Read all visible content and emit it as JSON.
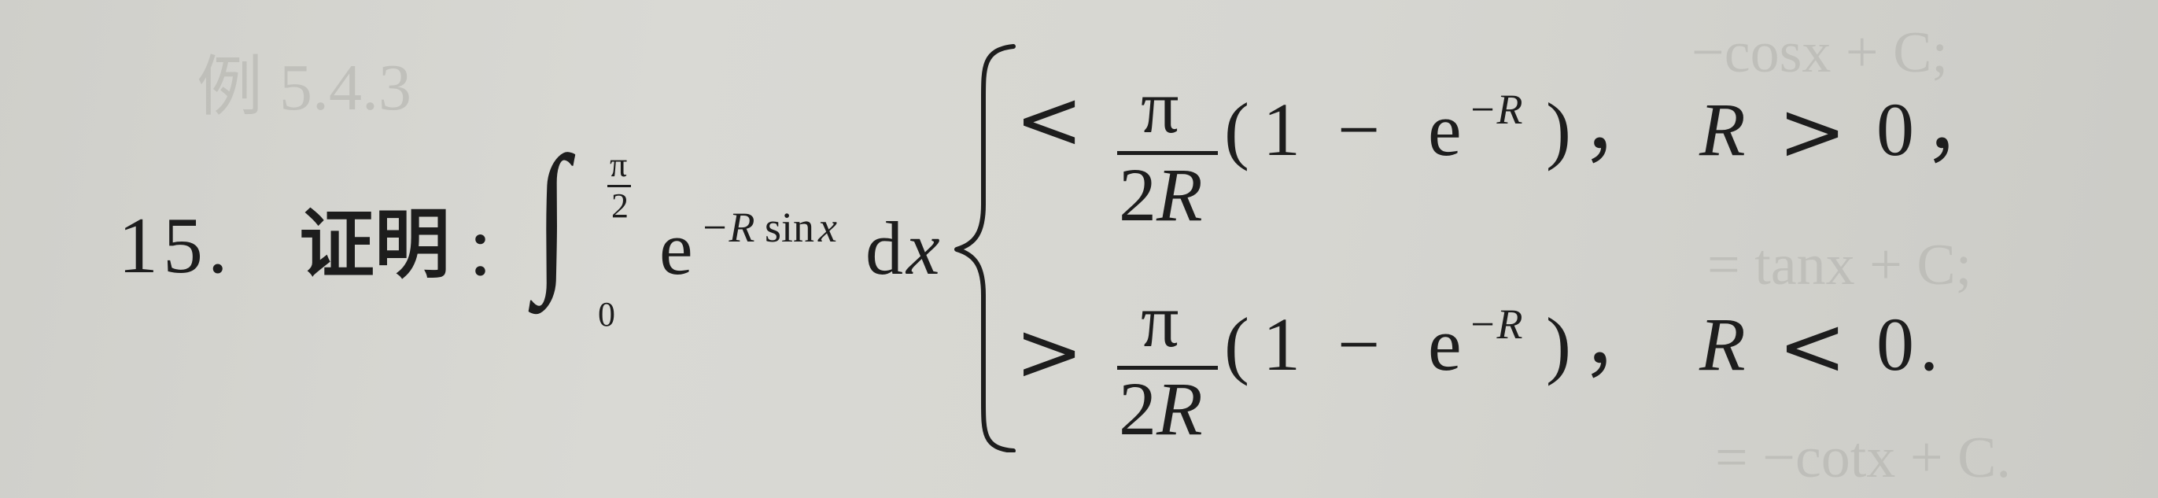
{
  "problem": {
    "number": "15.",
    "prove_label": "证明",
    "colon": "：",
    "integral": {
      "sign": "∫",
      "upper_num": "π",
      "upper_den": "2",
      "lower": "0",
      "integrand_base": "e",
      "exponent_var": "−R",
      "exponent_func": "sin",
      "exponent_arg": "x",
      "differential_d": "d",
      "differential_var": "x"
    },
    "cases": [
      {
        "relation": "<",
        "frac_num": "π",
        "frac_den": "2R",
        "paren_open": "(",
        "one": "1",
        "minus": "−",
        "e": "e",
        "e_exp": "−R",
        "paren_close": ")",
        "comma": "，",
        "cond_var": "R",
        "cond_rel": ">",
        "cond_val": "0",
        "end_punct": "，"
      },
      {
        "relation": ">",
        "frac_num": "π",
        "frac_den": "2R",
        "paren_open": "(",
        "one": "1",
        "minus": "−",
        "e": "e",
        "e_exp": "−R",
        "paren_close": ")",
        "comma": "，",
        "cond_var": "R",
        "cond_rel": "<",
        "cond_val": "0",
        "end_punct": "."
      }
    ]
  },
  "ghost_text": {
    "example_label": "例 5.4.3",
    "right_top": "−cosx + C;",
    "right_mid": "= tanx + C;",
    "right_bot": "= −cotx + C."
  }
}
